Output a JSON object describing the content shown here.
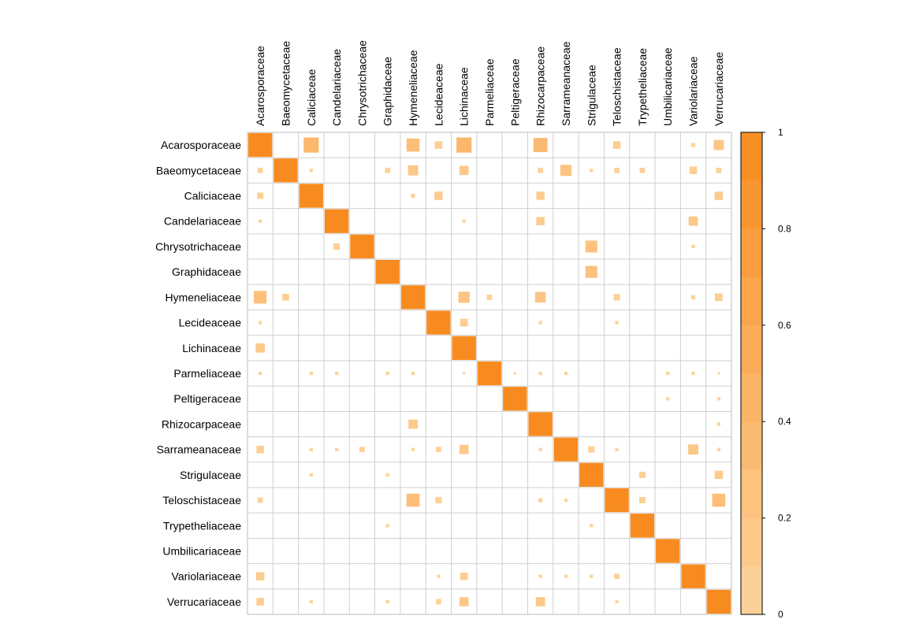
{
  "chart_data": {
    "type": "heatmap",
    "title": "",
    "xlabel": "",
    "ylabel": "",
    "categories": [
      "Acarosporaceae",
      "Baeomycetaceae",
      "Caliciaceae",
      "Candelariaceae",
      "Chrysotrichaceae",
      "Graphidaceae",
      "Hymeneliaceae",
      "Lecideaceae",
      "Lichinaceae",
      "Parmeliaceae",
      "Peltigeraceae",
      "Rhizocarpaceae",
      "Sarrameanaceae",
      "Strigulaceae",
      "Teloschistaceae",
      "Trypetheliaceae",
      "Umbilicariaceae",
      "Variolariaceae",
      "Verrucariaceae"
    ],
    "matrix": [
      [
        1,
        0,
        0.4,
        0,
        0,
        0,
        0.3,
        0.1,
        0.4,
        0,
        0,
        0.35,
        0,
        0,
        0.1,
        0,
        0,
        0.03,
        0.18
      ],
      [
        0.05,
        1,
        0.02,
        0,
        0,
        0.05,
        0.18,
        0,
        0.15,
        0,
        0,
        0.05,
        0.22,
        0.02,
        0.05,
        0.05,
        0,
        0.1,
        0.05
      ],
      [
        0.07,
        0,
        1,
        0,
        0,
        0,
        0.03,
        0.12,
        0,
        0,
        0,
        0.12,
        0,
        0,
        0,
        0,
        0,
        0,
        0.12
      ],
      [
        0.02,
        0,
        0,
        1,
        0,
        0,
        0,
        0,
        0.02,
        0,
        0,
        0.12,
        0,
        0,
        0,
        0,
        0,
        0.15,
        0
      ],
      [
        0,
        0,
        0,
        0.07,
        1,
        0,
        0,
        0,
        0,
        0,
        0,
        0,
        0,
        0.25,
        0,
        0,
        0,
        0.02,
        0
      ],
      [
        0,
        0,
        0,
        0,
        0,
        1,
        0,
        0,
        0,
        0,
        0,
        0,
        0,
        0.25,
        0,
        0,
        0,
        0,
        0
      ],
      [
        0.28,
        0.08,
        0,
        0,
        0,
        0,
        1,
        0,
        0.22,
        0.05,
        0,
        0.2,
        0,
        0,
        0.07,
        0,
        0,
        0.03,
        0.1
      ],
      [
        0.02,
        0,
        0,
        0,
        0,
        0,
        0,
        1,
        0.1,
        0,
        0,
        0.02,
        0,
        0,
        0.02,
        0,
        0,
        0,
        0
      ],
      [
        0.15,
        0,
        0,
        0,
        0,
        0,
        0,
        0,
        1,
        0,
        0,
        0,
        0,
        0,
        0,
        0,
        0,
        0,
        0
      ],
      [
        0.02,
        0,
        0.02,
        0.02,
        0,
        0.02,
        0.02,
        0,
        0.01,
        1,
        0.01,
        0.02,
        0.02,
        0,
        0,
        0,
        0.02,
        0.02,
        0.01
      ],
      [
        0,
        0,
        0,
        0,
        0,
        0,
        0,
        0,
        0,
        0,
        1,
        0,
        0,
        0,
        0,
        0,
        0.02,
        0,
        0.02
      ],
      [
        0,
        0,
        0,
        0,
        0,
        0,
        0.15,
        0,
        0,
        0,
        0,
        1,
        0,
        0,
        0,
        0,
        0,
        0,
        0.02
      ],
      [
        0.1,
        0,
        0.02,
        0.02,
        0.05,
        0,
        0.02,
        0.05,
        0.15,
        0,
        0,
        0.02,
        1,
        0.07,
        0.02,
        0,
        0,
        0.18,
        0.02
      ],
      [
        0,
        0,
        0.02,
        0,
        0,
        0.02,
        0,
        0,
        0,
        0,
        0,
        0,
        0,
        1,
        0,
        0.07,
        0,
        0,
        0.12
      ],
      [
        0.05,
        0,
        0,
        0,
        0,
        0,
        0.3,
        0.07,
        0,
        0,
        0,
        0.03,
        0.02,
        0,
        1,
        0.07,
        0,
        0,
        0.3
      ],
      [
        0,
        0,
        0,
        0,
        0,
        0.02,
        0,
        0,
        0,
        0,
        0,
        0,
        0,
        0.02,
        0,
        1,
        0,
        0,
        0
      ],
      [
        0,
        0,
        0,
        0,
        0,
        0,
        0,
        0,
        0,
        0,
        0,
        0,
        0,
        0,
        0,
        0,
        1,
        0,
        0
      ],
      [
        0.12,
        0,
        0,
        0,
        0,
        0,
        0,
        0.02,
        0.1,
        0,
        0,
        0.02,
        0.02,
        0.02,
        0.05,
        0,
        0,
        1,
        0
      ],
      [
        0.1,
        0,
        0.02,
        0,
        0,
        0.02,
        0,
        0.05,
        0.15,
        0,
        0,
        0.15,
        0,
        0,
        0.02,
        0,
        0,
        0,
        1
      ]
    ],
    "colorbar": {
      "range": [
        0,
        1
      ],
      "ticks": [
        "0",
        "0.2",
        "0.4",
        "0.6",
        "0.8",
        "1"
      ],
      "tick_values": [
        0,
        0.2,
        0.4,
        0.6,
        0.8,
        1
      ],
      "color_low": "#fdd49e",
      "color_high": "#f88b1f"
    },
    "grid": true,
    "legend": "right"
  }
}
